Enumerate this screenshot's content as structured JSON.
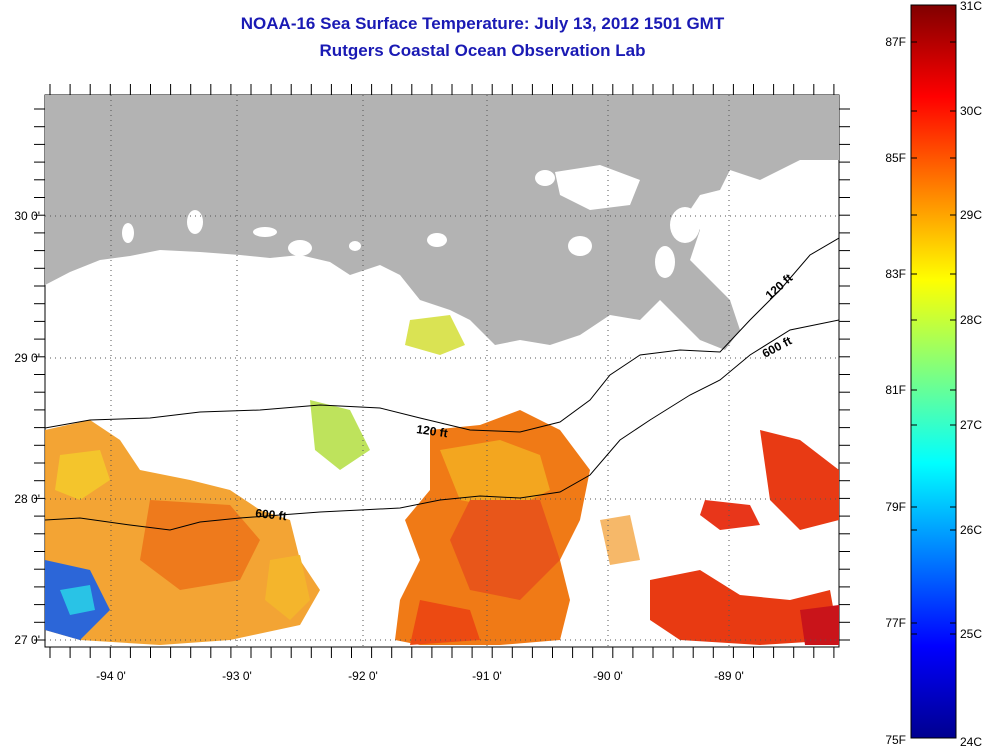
{
  "title": "NOAA-16 Sea Surface Temperature:  July 13, 2012 1501 GMT",
  "subtitle": "Rutgers Coastal Ocean Observation Lab",
  "lat_labels": [
    "30 0'",
    "29 0'",
    "28 0'",
    "27 0'"
  ],
  "lon_labels": [
    "-94 0'",
    "-93 0'",
    "-92 0'",
    "-91 0'",
    "-90 0'",
    "-89 0'"
  ],
  "contours": {
    "c120_a": "120 ft",
    "c120_b": "120 ft",
    "c600_a": "600 ft",
    "c600_b": "600 ft"
  },
  "colorbar": {
    "fahrenheit": [
      "87F",
      "85F",
      "83F",
      "81F",
      "79F",
      "77F",
      "75F"
    ],
    "celsius": [
      "31C",
      "30C",
      "29C",
      "28C",
      "27C",
      "26C",
      "25C",
      "24C"
    ],
    "min_c": 24,
    "max_c": 31
  },
  "colors": {
    "land": "#b3b3b3",
    "title": "#1a1ab4"
  }
}
